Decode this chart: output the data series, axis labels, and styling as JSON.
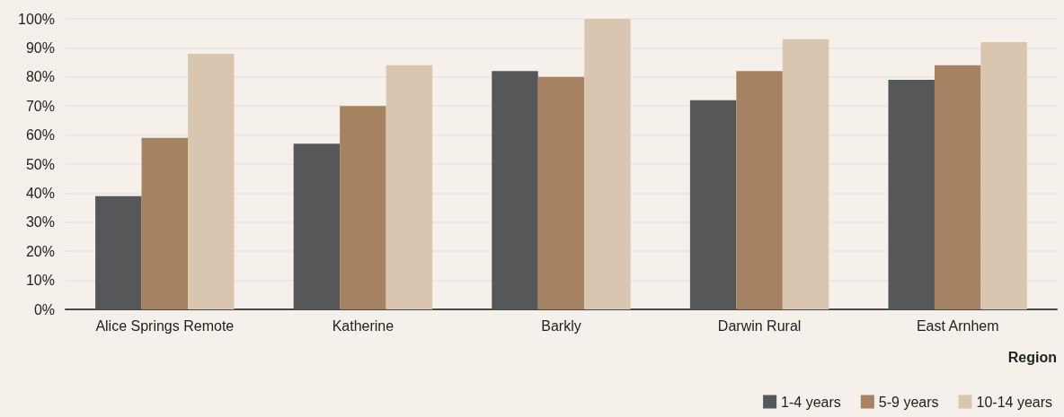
{
  "chart_data": {
    "type": "bar",
    "xlabel": "Region",
    "categories": [
      "Alice Springs Remote",
      "Katherine",
      "Barkly",
      "Darwin Rural",
      "East Arnhem"
    ],
    "series": [
      {
        "name": "1-4 years",
        "color": "#555759",
        "values": [
          39,
          57,
          82,
          72,
          79
        ]
      },
      {
        "name": "5-9 years",
        "color": "#a58262",
        "values": [
          59,
          70,
          80,
          82,
          84
        ]
      },
      {
        "name": "10-14 years",
        "color": "#d9c6b0",
        "values": [
          88,
          84,
          100,
          93,
          92
        ]
      }
    ],
    "ylim": [
      0,
      100
    ],
    "yticks": [
      {
        "value": 0,
        "label": "0%"
      },
      {
        "value": 10,
        "label": "10%"
      },
      {
        "value": 20,
        "label": "20%"
      },
      {
        "value": 30,
        "label": "30%"
      },
      {
        "value": 40,
        "label": "40%"
      },
      {
        "value": 50,
        "label": "50%"
      },
      {
        "value": 60,
        "label": "60%"
      },
      {
        "value": 70,
        "label": "70%"
      },
      {
        "value": 80,
        "label": "80%"
      },
      {
        "value": 90,
        "label": "90%"
      },
      {
        "value": 100,
        "label": "100%"
      }
    ],
    "grid": "y",
    "legend": "bottom right"
  }
}
